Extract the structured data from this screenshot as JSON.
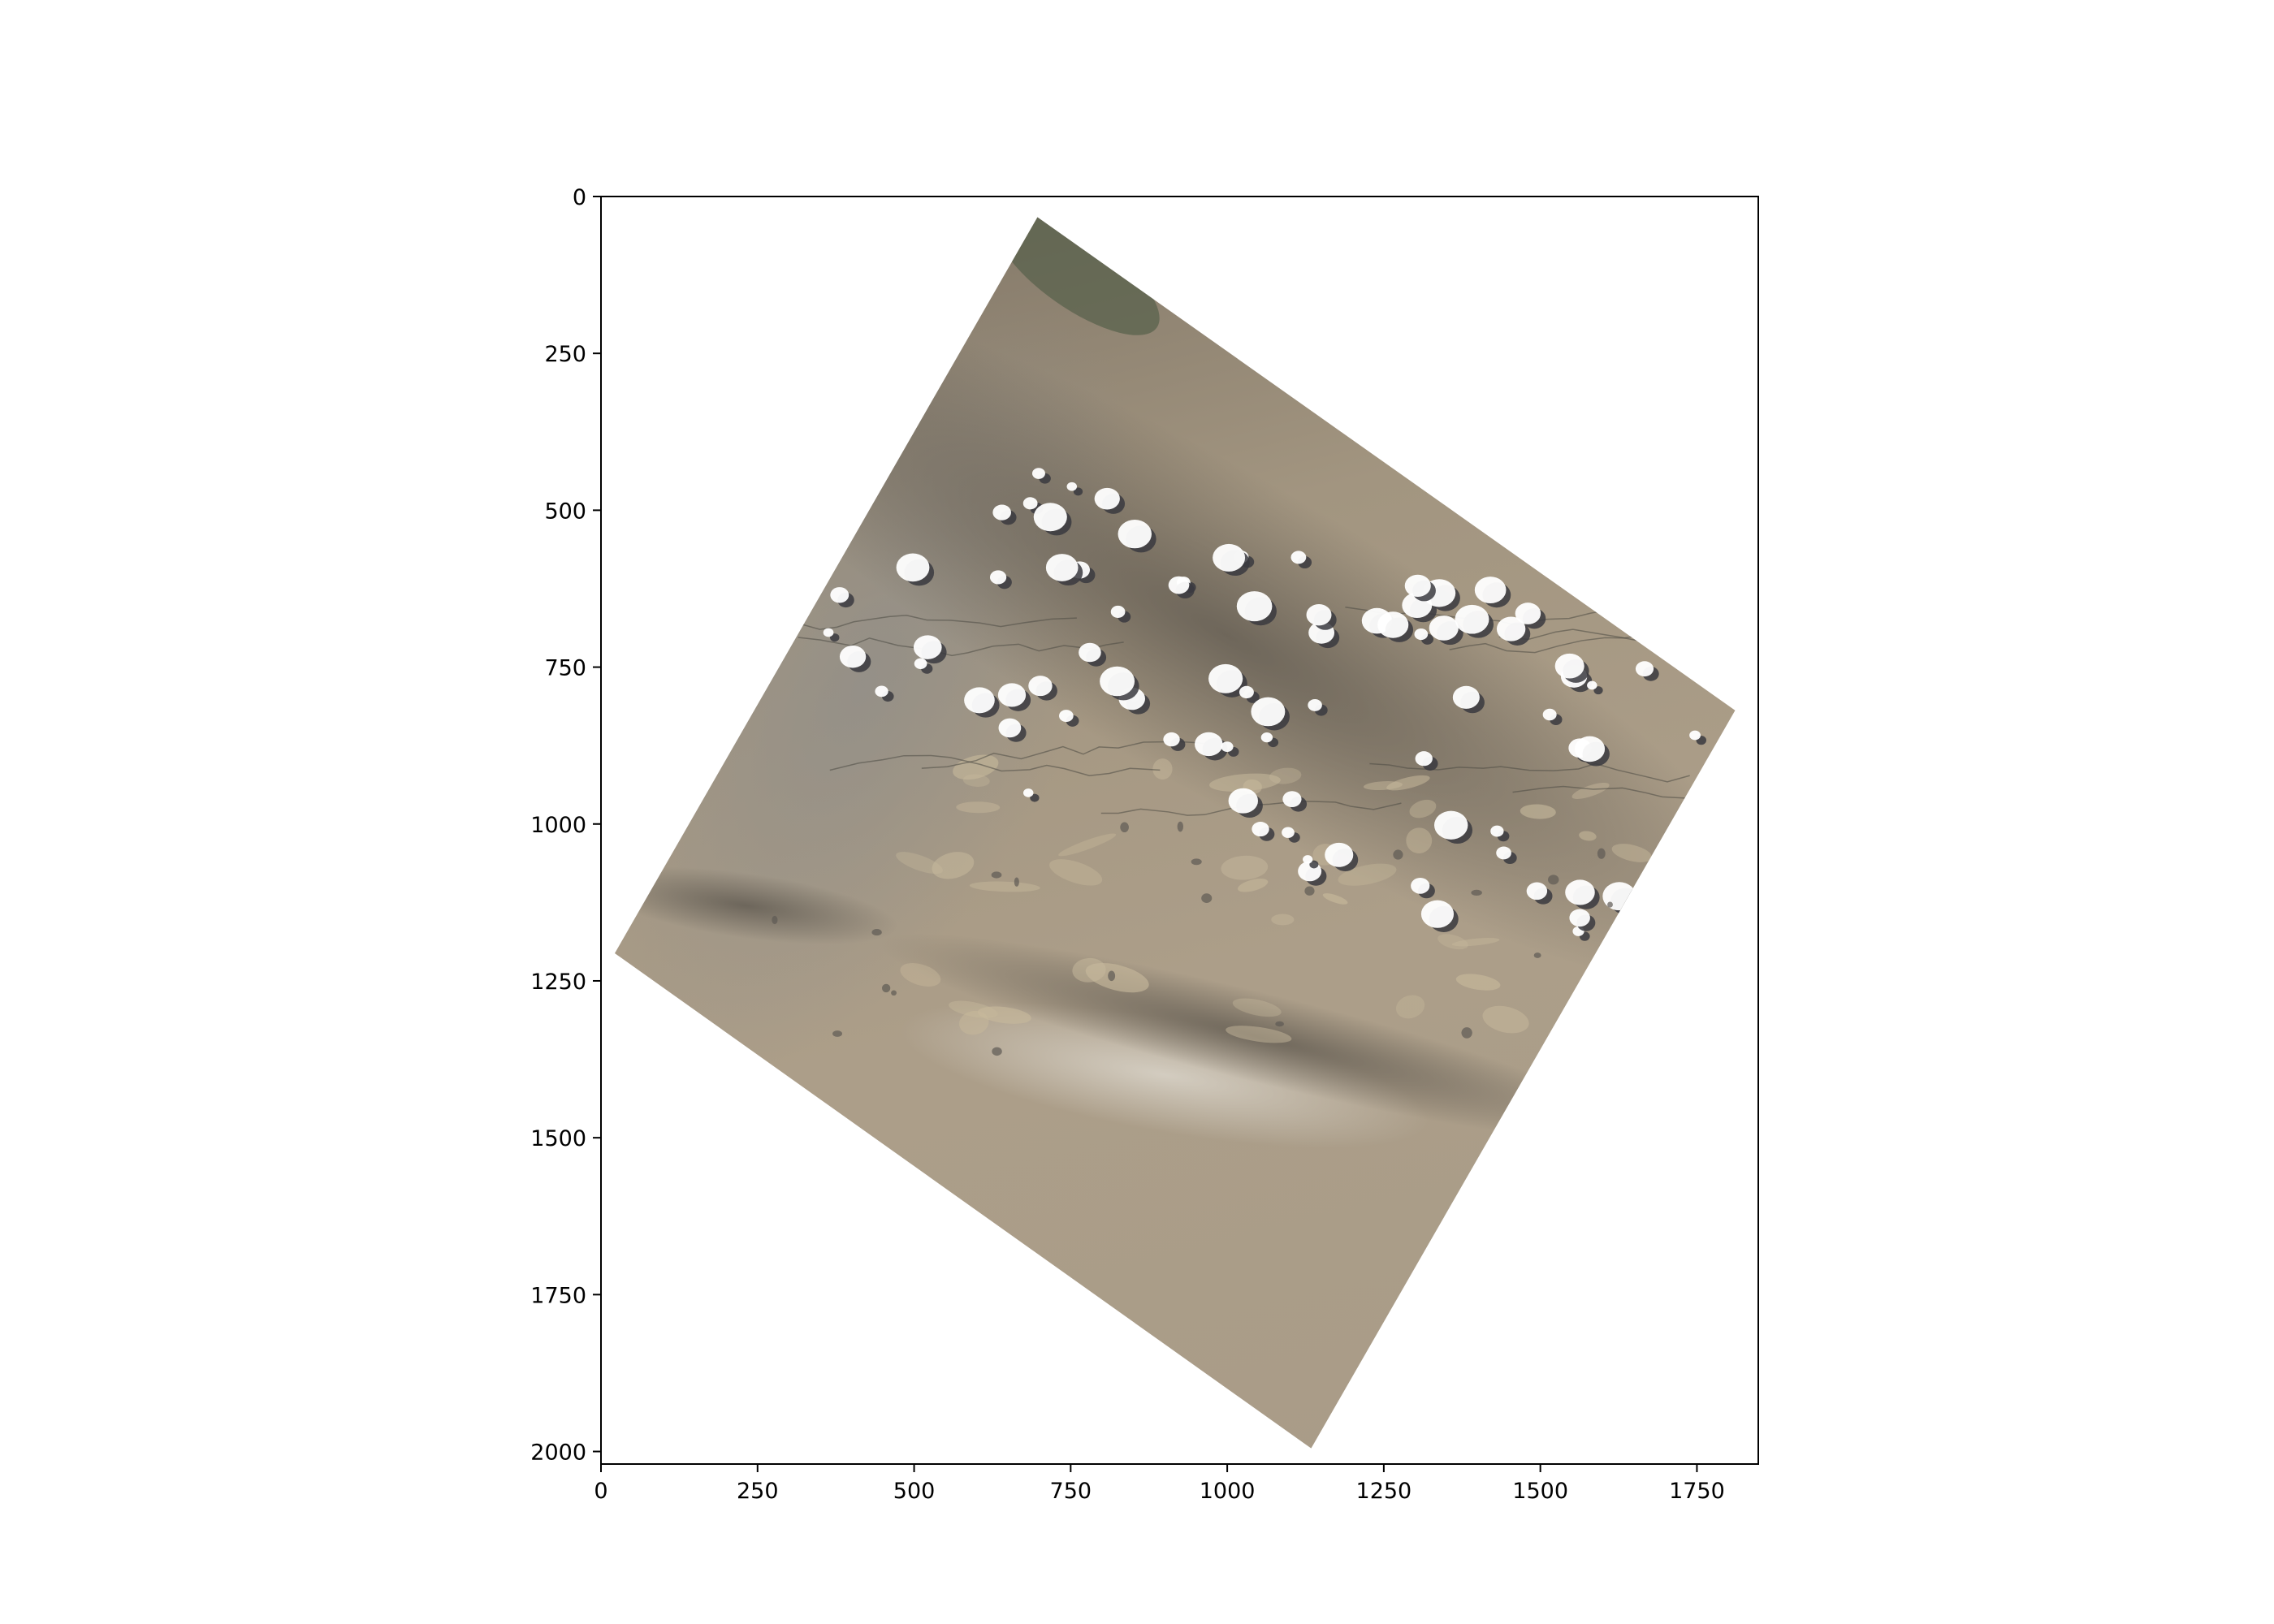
{
  "chart_data": {
    "type": "image",
    "title": "",
    "xlabel": "",
    "ylabel": "",
    "xlim": [
      0,
      1848
    ],
    "ylim": [
      2020,
      0
    ],
    "x_ticks": [
      0,
      250,
      500,
      750,
      1000,
      1250,
      1500,
      1750
    ],
    "y_ticks": [
      0,
      250,
      500,
      750,
      1000,
      1250,
      1500,
      1750,
      2000
    ],
    "grid": false,
    "raster_footprint": {
      "corners": [
        [
          697,
          33
        ],
        [
          1811,
          819
        ],
        [
          1134,
          1995
        ],
        [
          22,
          1206
        ]
      ],
      "description": "rotated satellite scene (true color)"
    },
    "colors": {
      "terrain_tan": "#a89a84",
      "terrain_dark": "#7d7468",
      "haze_light": "#c9c2b6",
      "vegetation": "#55604a",
      "cloud": "#ffffff",
      "cloud_shadow": "#3a3a40"
    }
  }
}
